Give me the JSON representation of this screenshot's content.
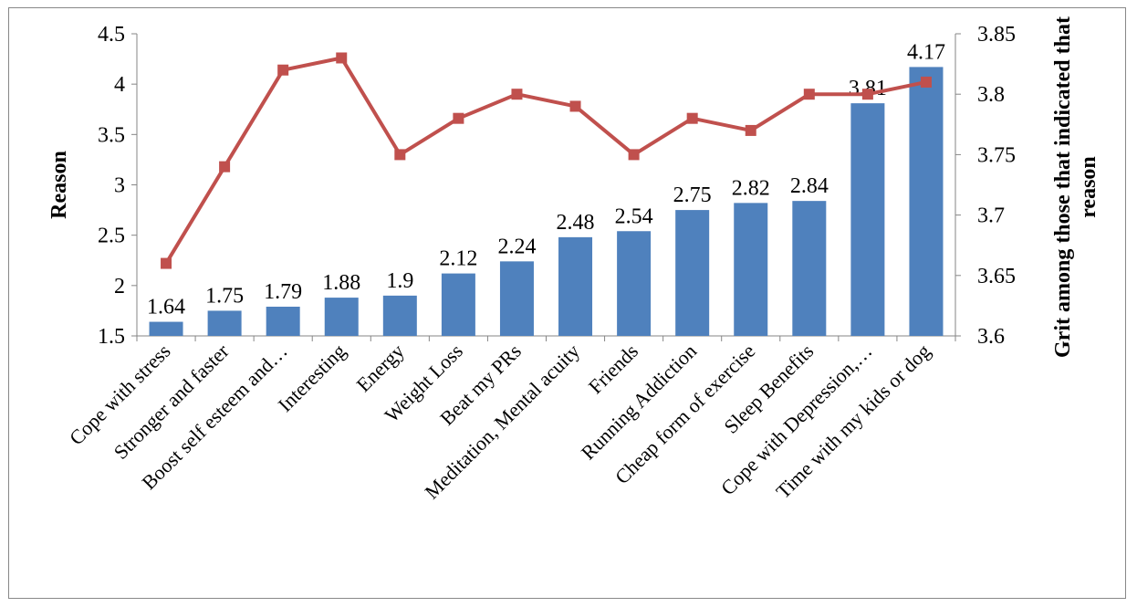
{
  "chart_data": {
    "type": "bar+line",
    "categories": [
      "Cope with stress",
      "Stronger and faster",
      "Boost self esteem and…",
      "Interesting",
      "Energy",
      "Weight Loss",
      "Beat my PRs",
      "Meditation, Mental acuity",
      "Friends",
      "Running Addiction",
      "Cheap form of exercise",
      "Sleep Benefits",
      "Cope with Depression,…",
      "Time with my kids or dog"
    ],
    "series": [
      {
        "type": "bar",
        "axis": "left",
        "color": "#4f81bd",
        "values": [
          1.64,
          1.75,
          1.79,
          1.88,
          1.9,
          2.12,
          2.24,
          2.48,
          2.54,
          2.75,
          2.82,
          2.84,
          3.81,
          4.17
        ],
        "labels": [
          "1.64",
          "1.75",
          "1.79",
          "1.88",
          "1.9",
          "2.12",
          "2.24",
          "2.48",
          "2.54",
          "2.75",
          "2.82",
          "2.84",
          "3.81",
          "4.17"
        ]
      },
      {
        "type": "line",
        "axis": "right",
        "color": "#c0504d",
        "marker": "square",
        "values": [
          3.66,
          3.74,
          3.82,
          3.83,
          3.75,
          3.78,
          3.8,
          3.79,
          3.75,
          3.78,
          3.77,
          3.8,
          3.8,
          3.81
        ]
      }
    ],
    "ylabel": "Reason",
    "ylim": [
      1.5,
      4.5
    ],
    "yticks": [
      "1.5",
      "2",
      "2.5",
      "3",
      "3.5",
      "4",
      "4.5"
    ],
    "y2label": [
      "Grit among those that indicated that",
      "reason"
    ],
    "y2lim": [
      3.6,
      3.85
    ],
    "y2ticks": [
      "3.6",
      "3.65",
      "3.7",
      "3.75",
      "3.8",
      "3.85"
    ],
    "grid": false,
    "legend": "none"
  }
}
